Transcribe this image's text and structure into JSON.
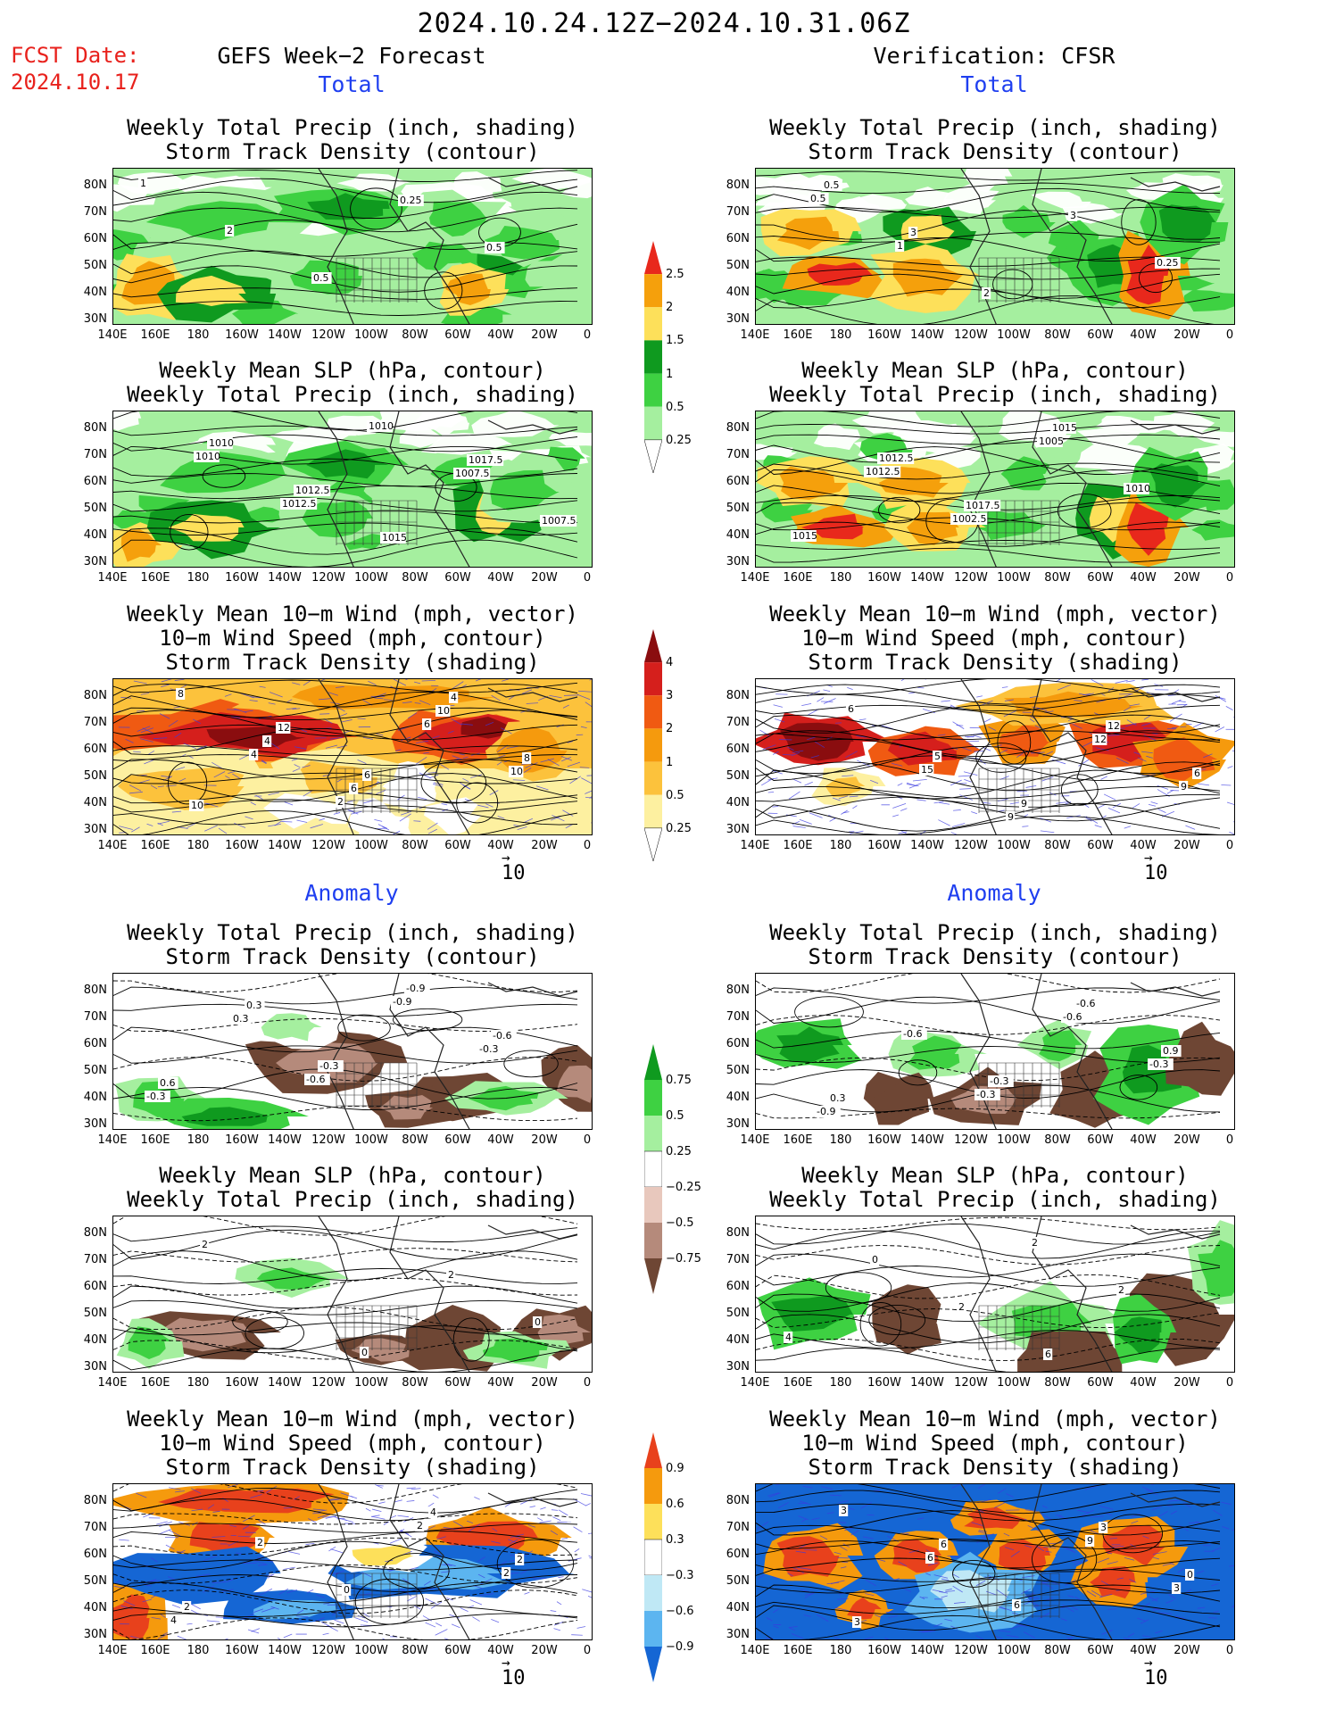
{
  "header": {
    "period": "2024.10.24.12Z−2024.10.31.06Z",
    "fcst_date_label": "FCST Date:",
    "fcst_date": "2024.10.17",
    "left_title": "GEFS Week−2 Forecast",
    "right_title": "Verification: CFSR"
  },
  "sections": {
    "total": "Total",
    "anomaly": "Anomaly"
  },
  "panel_titles": {
    "precip_storm": [
      "Weekly Total Precip (inch, shading)",
      "Storm Track Density (contour)"
    ],
    "slp_precip": [
      "Weekly Mean SLP (hPa, contour)",
      "Weekly Total Precip (inch, shading)"
    ],
    "wind_storm": [
      "Weekly Mean 10−m Wind (mph, vector)",
      "10−m Wind Speed (mph, contour)",
      "Storm Track Density (shading)"
    ]
  },
  "axes": {
    "lat_labels": [
      "80N",
      "70N",
      "60N",
      "50N",
      "40N",
      "30N"
    ],
    "lon_labels": [
      "140E",
      "160E",
      "180",
      "160W",
      "140W",
      "120W",
      "100W",
      "80W",
      "60W",
      "40W",
      "20W",
      "0"
    ]
  },
  "vector_reference": "10",
  "colorbars": {
    "precip_total": {
      "labels": [
        "2.5",
        "2",
        "1.5",
        "1",
        "0.5",
        "0.25"
      ],
      "colors": [
        "#e8281c",
        "#f5a00c",
        "#fde05a",
        "#0f9a1f",
        "#3ed142",
        "#a5ef9f",
        "#ffffff"
      ]
    },
    "storm_total": {
      "labels": [
        "4",
        "3",
        "2",
        "1",
        "0.5",
        "0.25"
      ],
      "colors": [
        "#8a0d0f",
        "#d51f1c",
        "#f05a12",
        "#f59a0d",
        "#fcc23c",
        "#fdf0a0",
        "#ffffff"
      ]
    },
    "precip_anom": {
      "labels": [
        "0.75",
        "0.5",
        "0.25",
        "−0.25",
        "−0.5",
        "−0.75"
      ],
      "colors": [
        "#0f9a1f",
        "#3ed142",
        "#a5ef9f",
        "#ffffff",
        "#e8c8bd",
        "#b58a7b",
        "#6e4634"
      ]
    },
    "storm_anom": {
      "labels": [
        "0.9",
        "0.6",
        "0.3",
        "−0.3",
        "−0.6",
        "−0.9"
      ],
      "colors": [
        "#e8411c",
        "#f59a0d",
        "#fde05a",
        "#ffffff",
        "#bfe8f5",
        "#5cb5f0",
        "#1566d4"
      ]
    }
  },
  "contour_labels": {
    "p1": [
      "1",
      "2",
      "0.5",
      "0.25",
      "0.5"
    ],
    "p2": [
      "1010",
      "1012.5",
      "1010",
      "1007.5",
      "1007.5",
      "1010",
      "1012.5",
      "1015",
      "1017.5"
    ],
    "p3": [
      "4",
      "2",
      "6",
      "10",
      "8",
      "4",
      "6",
      "10",
      "8",
      "10",
      "12",
      "6",
      "4"
    ],
    "p4": [
      "0.5",
      "1",
      "2",
      "3",
      "0.25",
      "0.5",
      "3"
    ],
    "p5": [
      "1012.5",
      "1002.5",
      "1005",
      "1010",
      "1015",
      "1012.5",
      "1017.5",
      "1015"
    ],
    "p6": [
      "15",
      "9",
      "12",
      "9",
      "6",
      "5",
      "9",
      "12",
      "6"
    ],
    "p7": [
      "-0.6",
      "-0.9",
      "-0.3",
      "-0.3",
      "0.3",
      "-0.3",
      "-0.9",
      "-0.6",
      "0.6",
      "0.3"
    ],
    "p8": [
      "-0.3",
      "-0.6",
      "-0.3",
      "-0.9",
      "-0.6",
      "-0.3",
      "-0.6",
      "0.9",
      "0.3"
    ],
    "p9": [
      "0",
      "2",
      "0",
      "2"
    ],
    "p10": [
      "2",
      "2",
      "4",
      "0",
      "2",
      "6"
    ],
    "p11": [
      "2",
      "2",
      "4",
      "2",
      "0",
      "4",
      "2",
      "2"
    ],
    "p12": [
      "9",
      "3",
      "3",
      "6",
      "6",
      "3",
      "0",
      "3",
      "6"
    ]
  }
}
